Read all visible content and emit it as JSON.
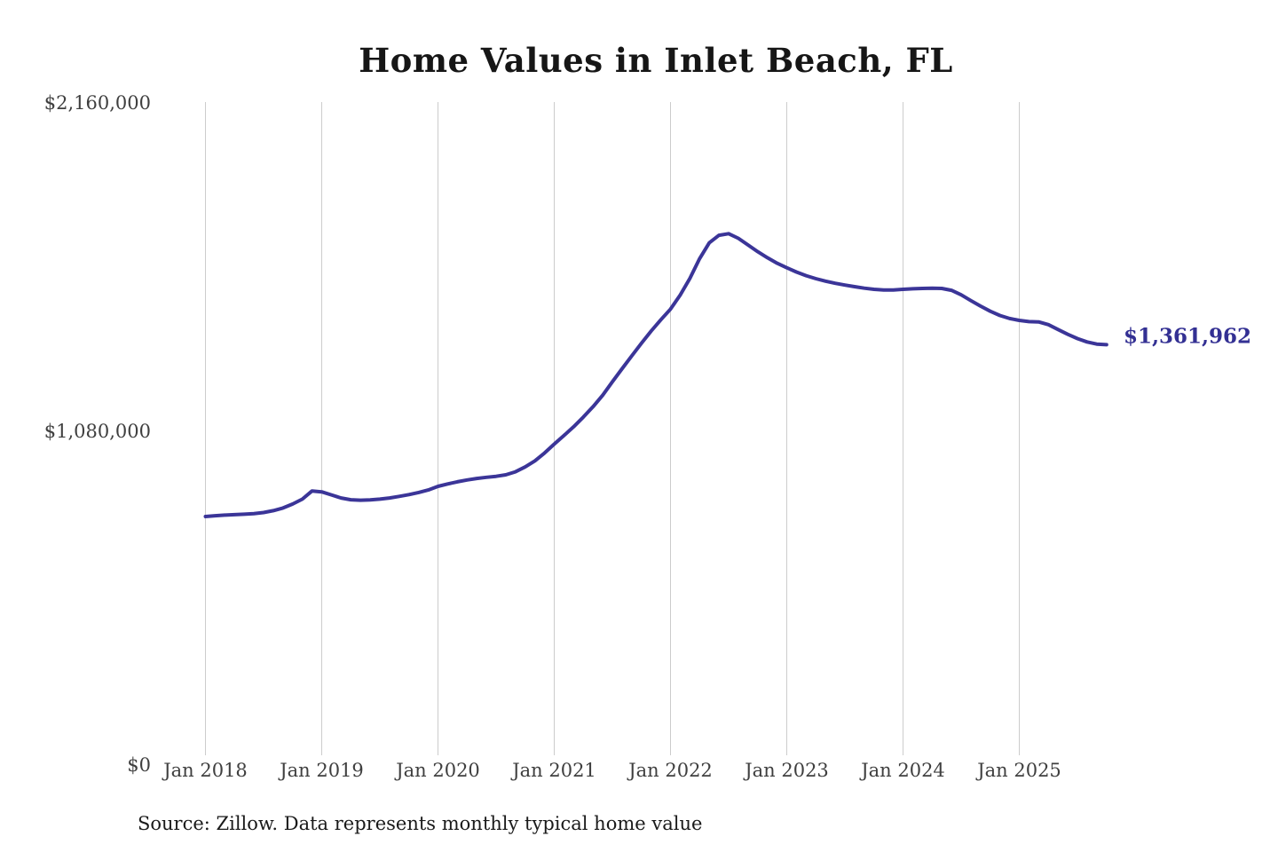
{
  "title": "Home Values in Inlet Beach, FL",
  "source_note": "Source: Zillow. Data represents monthly typical home value",
  "colors": {
    "line": "#3b3598",
    "end_label": "#333093",
    "grid": "#cccccc",
    "axis_text": "#3f3f3f",
    "title_text": "#161616",
    "background": "#ffffff"
  },
  "chart_data": {
    "type": "line",
    "title": "Home Values in Inlet Beach, FL",
    "series_name": "Monthly typical home value (Zillow)",
    "frequency": "monthly",
    "start": "2018-01",
    "end": "2025-10",
    "x_ticks": [
      "Jan 2018",
      "Jan 2019",
      "Jan 2020",
      "Jan 2021",
      "Jan 2022",
      "Jan 2023",
      "Jan 2024",
      "Jan 2025"
    ],
    "y_ticks": [
      "$2,160,000",
      "$1,080,000",
      "$0"
    ],
    "ylim": [
      0,
      2160000
    ],
    "grid": "vertical-only",
    "legend": "none",
    "end_value": 1361962,
    "end_label": "$1,361,962",
    "values": [
      797000,
      799500,
      801500,
      803000,
      804500,
      806500,
      810000,
      816000,
      825000,
      838000,
      854000,
      881000,
      878000,
      868000,
      858000,
      852000,
      850500,
      851500,
      854000,
      858000,
      863000,
      869000,
      876000,
      884000,
      896000,
      904000,
      911000,
      917000,
      922000,
      926000,
      929000,
      934000,
      944000,
      960000,
      980000,
      1006000,
      1035000,
      1063000,
      1092000,
      1124000,
      1158000,
      1196000,
      1240000,
      1283000,
      1325000,
      1367000,
      1407000,
      1444000,
      1479000,
      1525000,
      1580000,
      1645000,
      1697000,
      1722000,
      1727000,
      1712000,
      1690000,
      1668000,
      1648000,
      1630000,
      1615000,
      1601000,
      1589000,
      1579000,
      1571000,
      1564000,
      1558000,
      1553000,
      1548000,
      1544000,
      1542000,
      1542000,
      1544000,
      1546000,
      1547000,
      1548000,
      1547000,
      1541000,
      1526000,
      1507000,
      1489000,
      1472000,
      1458000,
      1448000,
      1442000,
      1438000,
      1437000,
      1428000,
      1412000,
      1396000,
      1382000,
      1371000,
      1364000,
      1361962
    ]
  }
}
